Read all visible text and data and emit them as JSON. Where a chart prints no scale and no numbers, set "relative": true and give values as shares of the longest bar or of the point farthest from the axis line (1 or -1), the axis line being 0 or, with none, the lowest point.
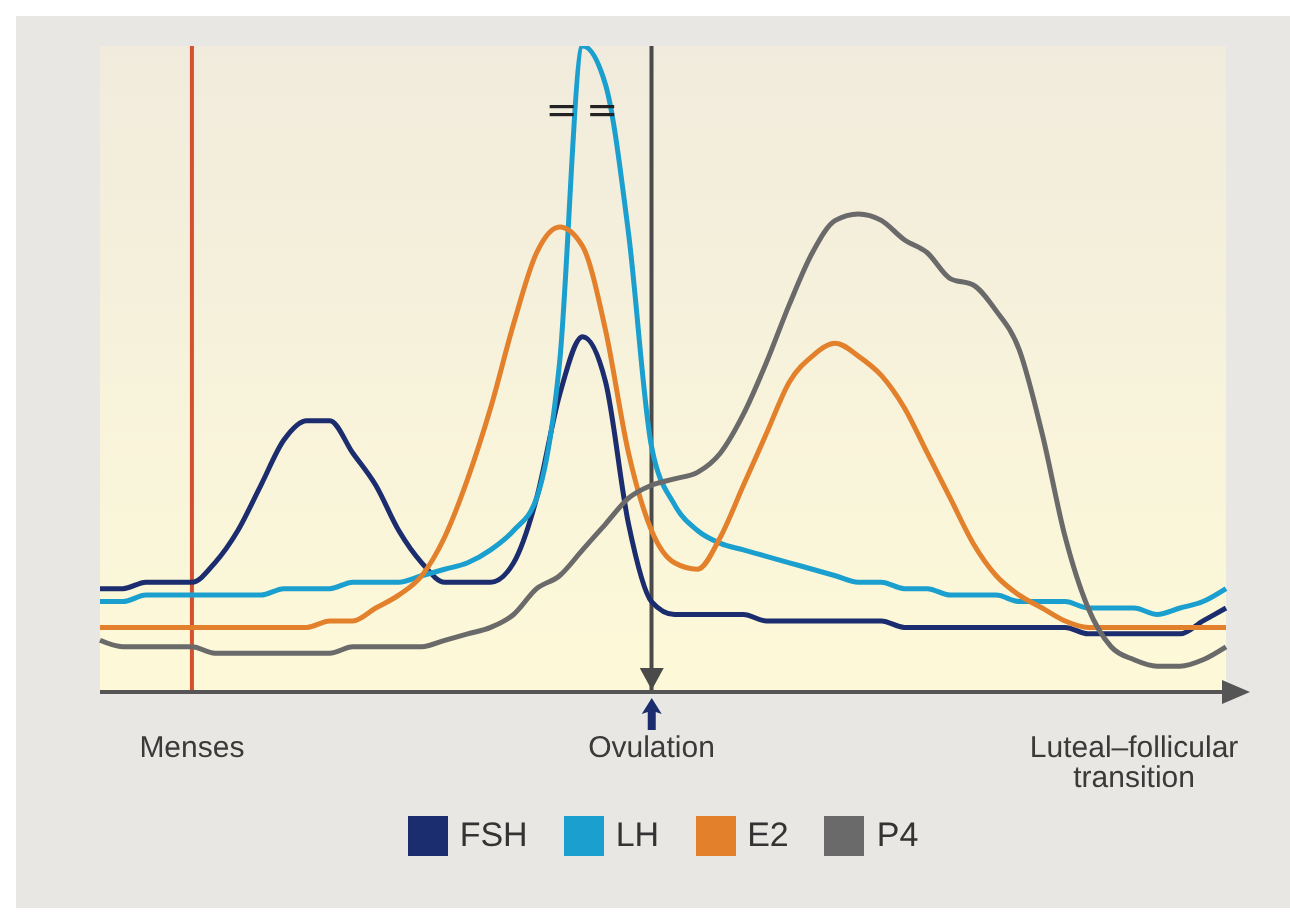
{
  "chart_data": {
    "type": "line",
    "relative": true,
    "categories": [
      null,
      null,
      null,
      null,
      "Menses",
      null,
      null,
      null,
      null,
      null,
      null,
      null,
      null,
      null,
      null,
      null,
      null,
      null,
      null,
      null,
      null,
      null,
      null,
      null,
      "Ovulation",
      null,
      null,
      null,
      null,
      null,
      null,
      null,
      null,
      null,
      null,
      null,
      null,
      null,
      null,
      null,
      null,
      null,
      null,
      null,
      null,
      "Luteal–follicular transition",
      null,
      null,
      null,
      null
    ],
    "series": [
      {
        "name": "FSH",
        "color": "#1b2d6e",
        "values": [
          0.16,
          0.16,
          0.17,
          0.17,
          0.17,
          0.2,
          0.25,
          0.32,
          0.39,
          0.42,
          0.42,
          0.37,
          0.32,
          0.25,
          0.2,
          0.17,
          0.17,
          0.17,
          0.2,
          0.3,
          0.46,
          0.55,
          0.48,
          0.26,
          0.14,
          0.12,
          0.12,
          0.12,
          0.12,
          0.11,
          0.11,
          0.11,
          0.11,
          0.11,
          0.11,
          0.1,
          0.1,
          0.1,
          0.1,
          0.1,
          0.1,
          0.1,
          0.1,
          0.09,
          0.09,
          0.09,
          0.09,
          0.09,
          0.11,
          0.13
        ]
      },
      {
        "name": "LH",
        "color": "#1a9fcf",
        "values": [
          0.14,
          0.14,
          0.15,
          0.15,
          0.15,
          0.15,
          0.15,
          0.15,
          0.16,
          0.16,
          0.16,
          0.17,
          0.17,
          0.17,
          0.18,
          0.19,
          0.2,
          0.22,
          0.25,
          0.3,
          0.51,
          1,
          0.94,
          0.71,
          0.38,
          0.29,
          0.25,
          0.23,
          0.22,
          0.21,
          0.2,
          0.19,
          0.18,
          0.17,
          0.17,
          0.16,
          0.16,
          0.15,
          0.15,
          0.15,
          0.14,
          0.14,
          0.14,
          0.13,
          0.13,
          0.13,
          0.12,
          0.13,
          0.14,
          0.16
        ]
      },
      {
        "name": "E2",
        "color": "#e3802b",
        "values": [
          0.1,
          0.1,
          0.1,
          0.1,
          0.1,
          0.1,
          0.1,
          0.1,
          0.1,
          0.1,
          0.11,
          0.11,
          0.13,
          0.15,
          0.18,
          0.24,
          0.33,
          0.44,
          0.57,
          0.68,
          0.72,
          0.69,
          0.56,
          0.37,
          0.25,
          0.2,
          0.19,
          0.24,
          0.32,
          0.4,
          0.48,
          0.52,
          0.54,
          0.52,
          0.49,
          0.44,
          0.37,
          0.3,
          0.23,
          0.18,
          0.15,
          0.13,
          0.11,
          0.1,
          0.1,
          0.1,
          0.1,
          0.1,
          0.1,
          0.1
        ]
      },
      {
        "name": "P4",
        "color": "#6a6a6a",
        "values": [
          0.08,
          0.07,
          0.07,
          0.07,
          0.07,
          0.06,
          0.06,
          0.06,
          0.06,
          0.06,
          0.06,
          0.07,
          0.07,
          0.07,
          0.07,
          0.08,
          0.09,
          0.1,
          0.12,
          0.16,
          0.18,
          0.22,
          0.26,
          0.3,
          0.32,
          0.33,
          0.34,
          0.37,
          0.43,
          0.51,
          0.6,
          0.68,
          0.73,
          0.74,
          0.73,
          0.7,
          0.68,
          0.64,
          0.63,
          0.59,
          0.53,
          0.4,
          0.24,
          0.13,
          0.07,
          0.05,
          0.04,
          0.04,
          0.05,
          0.07
        ]
      }
    ],
    "ref_lines": [
      {
        "axis": "x",
        "value": "Menses",
        "color": "#d4502e"
      },
      {
        "axis": "x",
        "value": "Ovulation",
        "color": "#4a4a4a"
      }
    ],
    "legend": "bottom",
    "marker": "none",
    "line_style": "solid",
    "grid": false
  }
}
